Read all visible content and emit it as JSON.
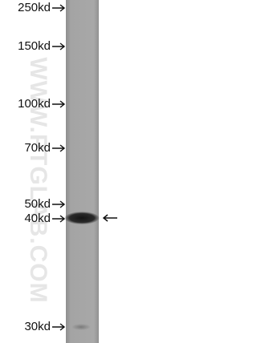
{
  "markers": [
    "250kd",
    "150kd",
    "100kd",
    "70kd",
    "50kd",
    "40kd",
    "30kd"
  ],
  "watermark": "WWW.PTGLAB.COM"
}
